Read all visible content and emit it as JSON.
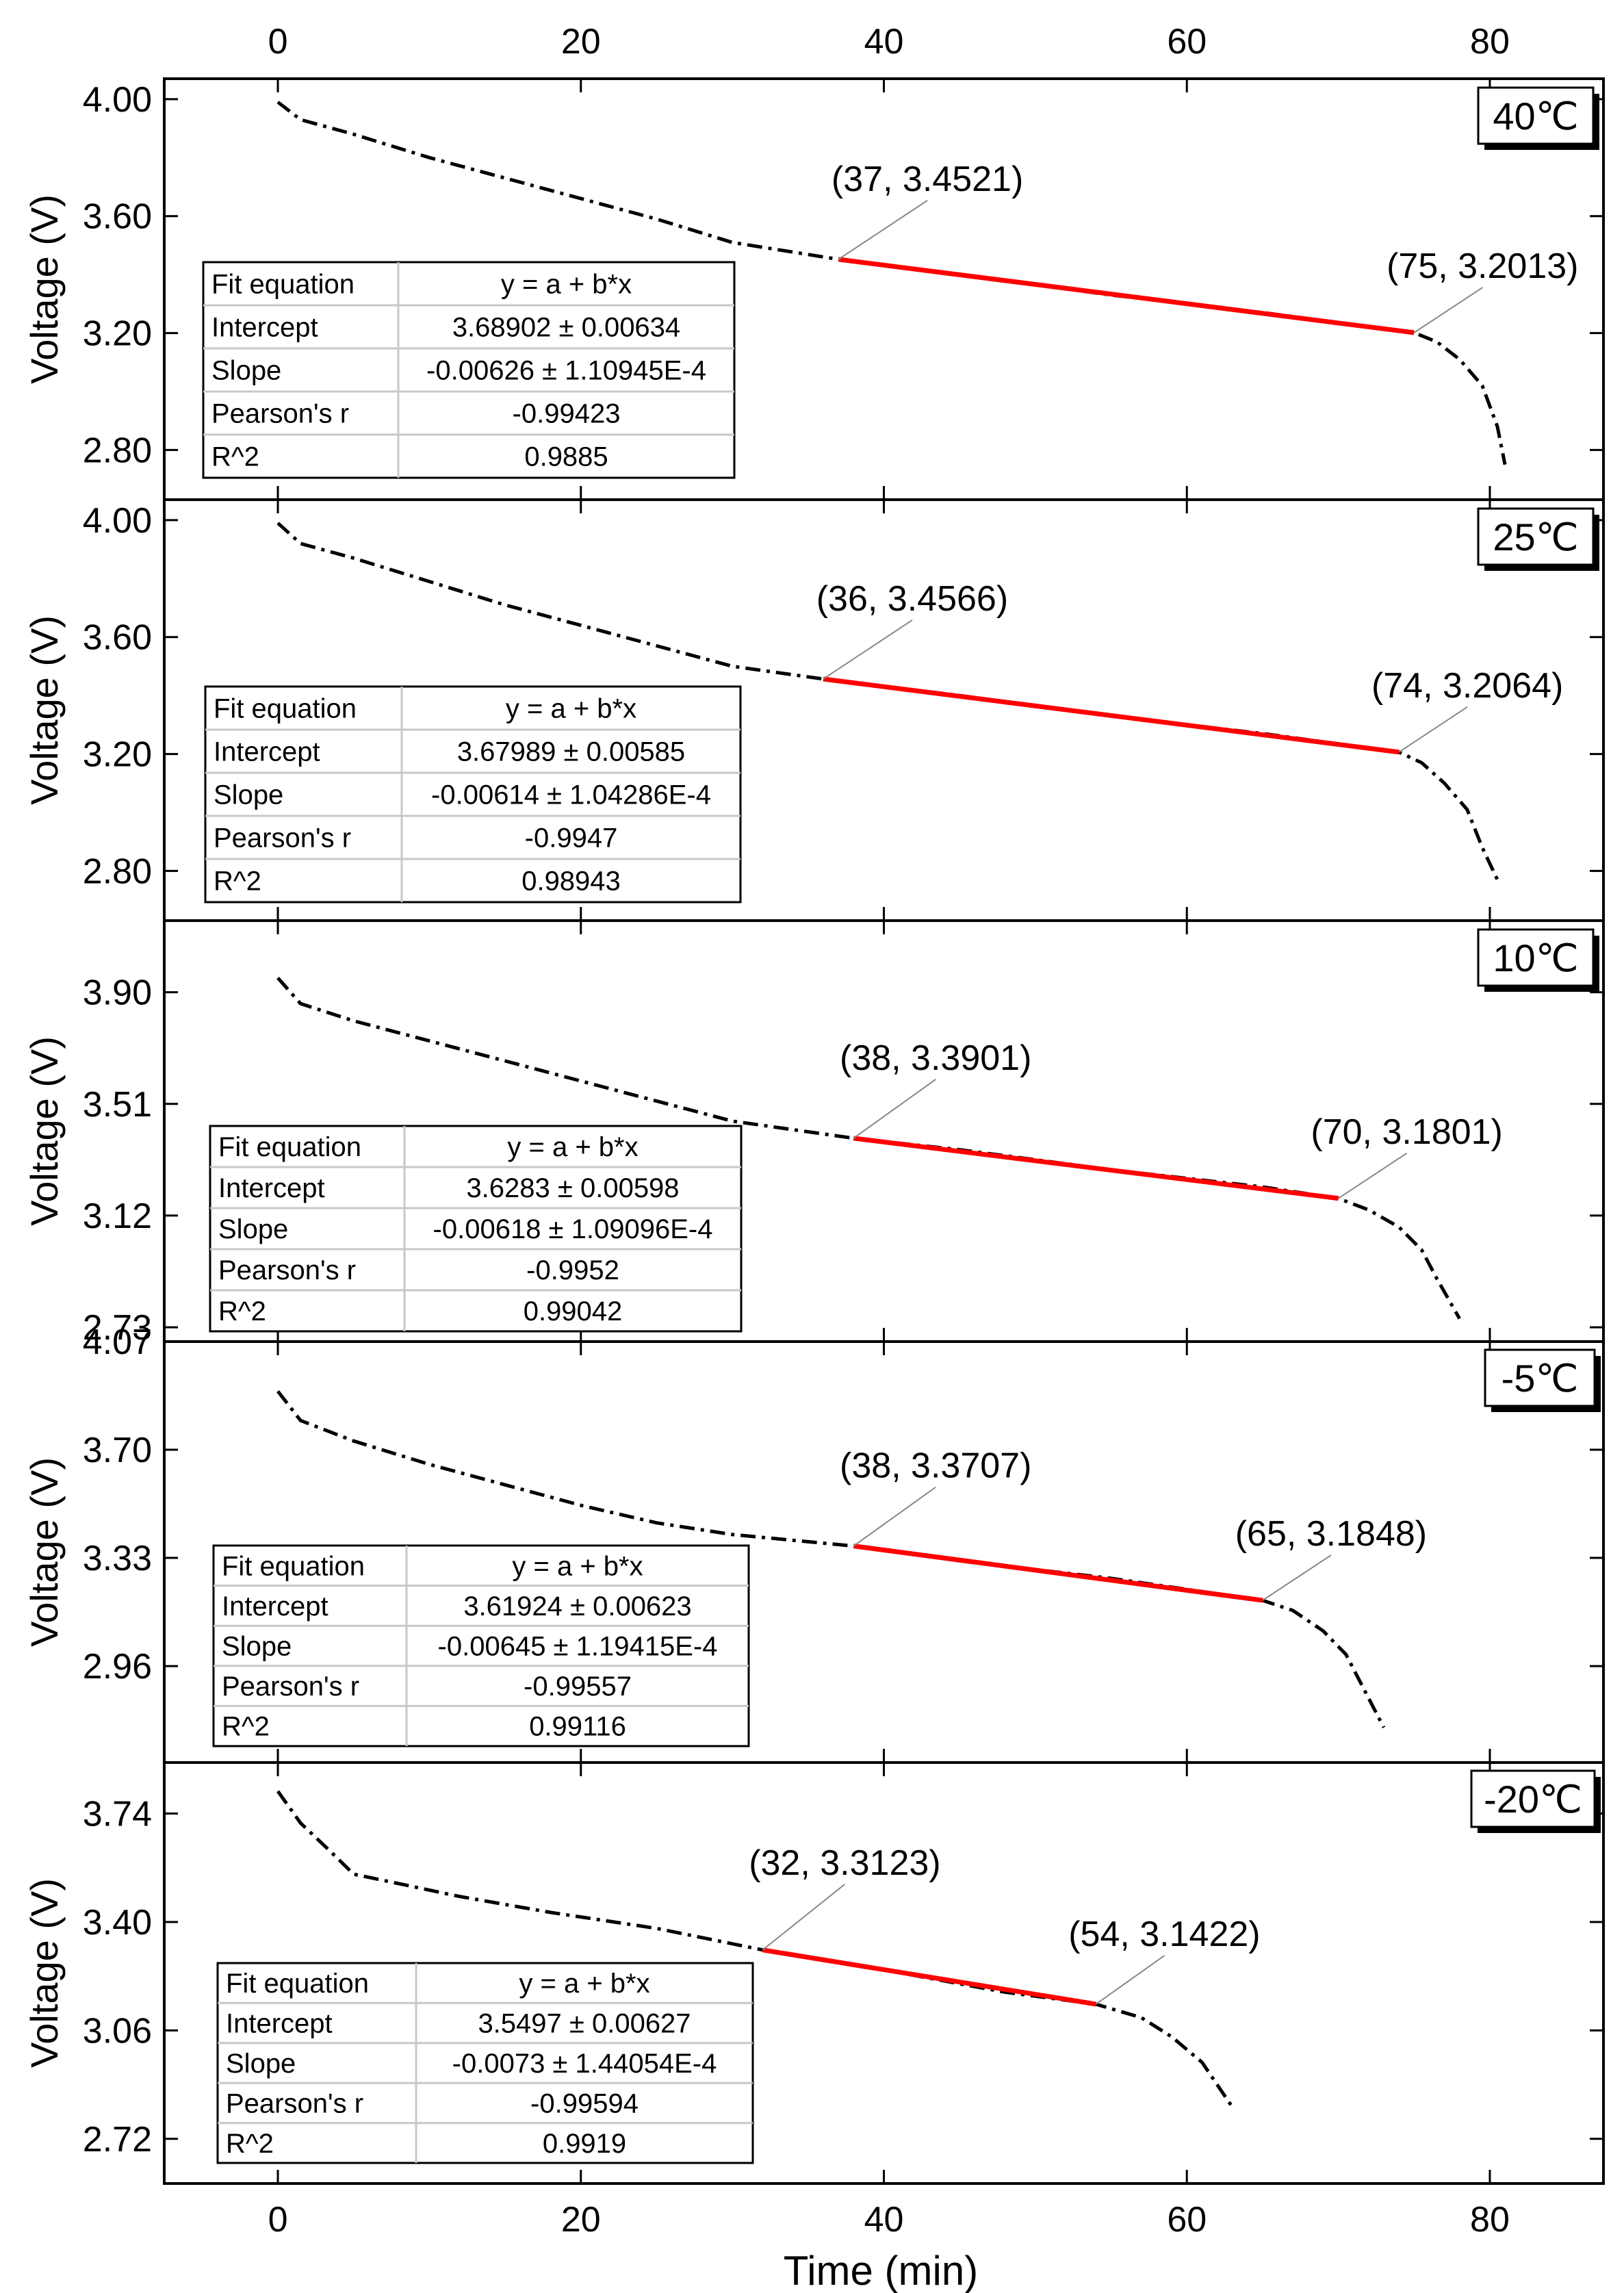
{
  "chart_data": {
    "type": "line",
    "xlabel": "Time (min)",
    "x_ticks": [
      0,
      20,
      40,
      60,
      80
    ],
    "xlim": [
      -7.5,
      87.5
    ],
    "colors": {
      "curve": "#000000",
      "fit": "#ff0000",
      "frame": "#000000",
      "grid_table": "#c8c8c8"
    },
    "panels": [
      {
        "temperature": "40℃",
        "ylabel": "Voltage (V)",
        "y_ticks": [
          "4.00",
          "3.60",
          "3.20",
          "2.80"
        ],
        "ylim": [
          2.63,
          4.07
        ],
        "series_points": [
          [
            0,
            3.99
          ],
          [
            1.5,
            3.93
          ],
          [
            5,
            3.88
          ],
          [
            10,
            3.8
          ],
          [
            15,
            3.73
          ],
          [
            20,
            3.66
          ],
          [
            25,
            3.59
          ],
          [
            30,
            3.51
          ],
          [
            37,
            3.4521
          ],
          [
            45,
            3.4
          ],
          [
            55,
            3.33
          ],
          [
            65,
            3.27
          ],
          [
            75,
            3.2013
          ],
          [
            76.5,
            3.17
          ],
          [
            78,
            3.11
          ],
          [
            79.5,
            3.02
          ],
          [
            80.5,
            2.88
          ],
          [
            81,
            2.75
          ]
        ],
        "fit_start": [
          37,
          3.4521
        ],
        "fit_end": [
          75,
          3.2013
        ],
        "annotation_start": "(37, 3.4521)",
        "annotation_end": "(75, 3.2013)",
        "fit_table": [
          [
            "Fit equation",
            "y = a + b*x"
          ],
          [
            "Intercept",
            "3.68902 ± 0.00634"
          ],
          [
            "Slope",
            "-0.00626 ± 1.10945E-4"
          ],
          [
            "Pearson's r",
            "-0.99423"
          ],
          [
            "R^2",
            "0.9885"
          ]
        ]
      },
      {
        "temperature": "25℃",
        "ylabel": "Voltage (V)",
        "y_ticks": [
          "4.00",
          "3.60",
          "3.20",
          "2.80"
        ],
        "ylim": [
          2.63,
          4.07
        ],
        "series_points": [
          [
            0,
            3.99
          ],
          [
            1.5,
            3.92
          ],
          [
            5,
            3.87
          ],
          [
            10,
            3.79
          ],
          [
            15,
            3.71
          ],
          [
            20,
            3.64
          ],
          [
            25,
            3.57
          ],
          [
            30,
            3.5
          ],
          [
            36,
            3.4566
          ],
          [
            45,
            3.4
          ],
          [
            55,
            3.33
          ],
          [
            65,
            3.27
          ],
          [
            74,
            3.2064
          ],
          [
            75.5,
            3.17
          ],
          [
            77,
            3.1
          ],
          [
            78.5,
            3.01
          ],
          [
            79.5,
            2.88
          ],
          [
            80.5,
            2.77
          ]
        ],
        "fit_start": [
          36,
          3.4566
        ],
        "fit_end": [
          74,
          3.2064
        ],
        "annotation_start": "(36, 3.4566)",
        "annotation_end": "(74, 3.2064)",
        "fit_table": [
          [
            "Fit equation",
            "y = a + b*x"
          ],
          [
            "Intercept",
            "3.67989 ± 0.00585"
          ],
          [
            "Slope",
            "-0.00614 ± 1.04286E-4"
          ],
          [
            "Pearson's r",
            "-0.9947"
          ],
          [
            "R^2",
            "0.98943"
          ]
        ]
      },
      {
        "temperature": "10℃",
        "ylabel": "Voltage (V)",
        "y_ticks": [
          "3.90",
          "3.51",
          "3.12",
          "2.73"
        ],
        "ylim": [
          2.68,
          4.15
        ],
        "series_points": [
          [
            0,
            3.95
          ],
          [
            1.5,
            3.86
          ],
          [
            5,
            3.8
          ],
          [
            10,
            3.73
          ],
          [
            15,
            3.66
          ],
          [
            20,
            3.59
          ],
          [
            25,
            3.52
          ],
          [
            30,
            3.45
          ],
          [
            38,
            3.3901
          ],
          [
            45,
            3.35
          ],
          [
            55,
            3.28
          ],
          [
            65,
            3.22
          ],
          [
            70,
            3.1801
          ],
          [
            72,
            3.14
          ],
          [
            74,
            3.08
          ],
          [
            75.5,
            3.0
          ],
          [
            76.5,
            2.9
          ],
          [
            78,
            2.76
          ]
        ],
        "fit_start": [
          38,
          3.3901
        ],
        "fit_end": [
          70,
          3.1801
        ],
        "annotation_start": "(38, 3.3901)",
        "annotation_end": "(70, 3.1801)",
        "fit_table": [
          [
            "Fit equation",
            "y = a + b*x"
          ],
          [
            "Intercept",
            "3.6283 ± 0.00598"
          ],
          [
            "Slope",
            "-0.00618 ± 1.09096E-4"
          ],
          [
            "Pearson's r",
            "-0.9952"
          ],
          [
            "R^2",
            "0.99042"
          ]
        ]
      },
      {
        "temperature": "-5℃",
        "ylabel": "Voltage (V)",
        "y_ticks": [
          "4.07",
          "3.70",
          "3.33",
          "2.96"
        ],
        "ylim": [
          2.63,
          4.07
        ],
        "series_points": [
          [
            0,
            3.9
          ],
          [
            1.5,
            3.8
          ],
          [
            5,
            3.73
          ],
          [
            10,
            3.65
          ],
          [
            15,
            3.58
          ],
          [
            20,
            3.51
          ],
          [
            25,
            3.45
          ],
          [
            30,
            3.41
          ],
          [
            38,
            3.3707
          ],
          [
            45,
            3.32
          ],
          [
            55,
            3.26
          ],
          [
            65,
            3.1848
          ],
          [
            67,
            3.15
          ],
          [
            69,
            3.08
          ],
          [
            70.5,
            3.0
          ],
          [
            71.5,
            2.9
          ],
          [
            73,
            2.75
          ]
        ],
        "fit_start": [
          38,
          3.3707
        ],
        "fit_end": [
          65,
          3.1848
        ],
        "annotation_start": "(38, 3.3707)",
        "annotation_end": "(65, 3.1848)",
        "fit_table": [
          [
            "Fit equation",
            "y = a + b*x"
          ],
          [
            "Intercept",
            "3.61924 ± 0.00623"
          ],
          [
            "Slope",
            "-0.00645 ± 1.19415E-4"
          ],
          [
            "Pearson's r",
            "-0.99557"
          ],
          [
            "R^2",
            "0.99116"
          ]
        ]
      },
      {
        "temperature": "-20℃",
        "ylabel": "Voltage (V)",
        "y_ticks": [
          "3.74",
          "3.40",
          "3.06",
          "2.72"
        ],
        "ylim": [
          2.58,
          3.9
        ],
        "series_points": [
          [
            0,
            3.81
          ],
          [
            1.5,
            3.71
          ],
          [
            3.5,
            3.62
          ],
          [
            5,
            3.55
          ],
          [
            8,
            3.52
          ],
          [
            12,
            3.48
          ],
          [
            18,
            3.43
          ],
          [
            25,
            3.38
          ],
          [
            32,
            3.3123
          ],
          [
            40,
            3.25
          ],
          [
            48,
            3.18
          ],
          [
            54,
            3.1422
          ],
          [
            57,
            3.1
          ],
          [
            59,
            3.04
          ],
          [
            61,
            2.96
          ],
          [
            63,
            2.82
          ]
        ],
        "fit_start": [
          32,
          3.3123
        ],
        "fit_end": [
          54,
          3.1422
        ],
        "annotation_start": "(32, 3.3123)",
        "annotation_end": "(54, 3.1422)",
        "fit_table": [
          [
            "Fit equation",
            "y = a + b*x"
          ],
          [
            "Intercept",
            "3.5497 ± 0.00627"
          ],
          [
            "Slope",
            "-0.0073 ± 1.44054E-4"
          ],
          [
            "Pearson's r",
            "-0.99594"
          ],
          [
            "R^2",
            "0.9919"
          ]
        ]
      }
    ]
  }
}
